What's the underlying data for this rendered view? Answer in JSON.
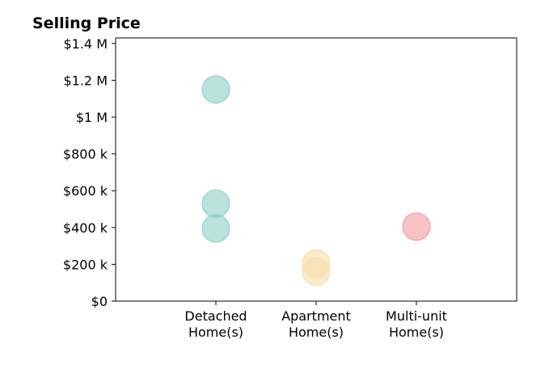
{
  "chart_data": {
    "type": "scatter",
    "title": "Selling Price",
    "xlabel": "",
    "ylabel": "",
    "categories": [
      [
        "Detached",
        "Home(s)"
      ],
      [
        "Apartment",
        "Home(s)"
      ],
      [
        "Multi-unit",
        "Home(s)"
      ]
    ],
    "xlim": [
      -1,
      3
    ],
    "ylim": [
      0,
      1430000
    ],
    "y_ticks": [
      {
        "value": 0,
        "label": "$0"
      },
      {
        "value": 200000,
        "label": "$200 k"
      },
      {
        "value": 400000,
        "label": "$400 k"
      },
      {
        "value": 600000,
        "label": "$600 k"
      },
      {
        "value": 800000,
        "label": "$800 k"
      },
      {
        "value": 1000000,
        "label": "$1 M"
      },
      {
        "value": 1200000,
        "label": "$1.2 M"
      },
      {
        "value": 1400000,
        "label": "$1.4 M"
      }
    ],
    "grid": false,
    "legend": "none",
    "points": [
      {
        "category": 0,
        "value": 1150000,
        "color": "#8ecfc4",
        "alpha": 0.6
      },
      {
        "category": 0,
        "value": 530000,
        "color": "#8ecfc4",
        "alpha": 0.6
      },
      {
        "category": 0,
        "value": 395000,
        "color": "#8ecfc4",
        "alpha": 0.6
      },
      {
        "category": 1,
        "value": 205000,
        "color": "#f7dea8",
        "alpha": 0.6
      },
      {
        "category": 1,
        "value": 160000,
        "color": "#f7dea8",
        "alpha": 0.6
      },
      {
        "category": 2,
        "value": 405000,
        "color": "#f4989f",
        "alpha": 0.6
      }
    ]
  }
}
